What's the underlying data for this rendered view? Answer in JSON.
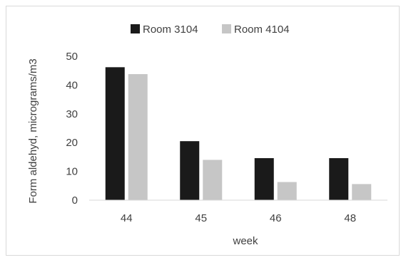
{
  "chart_data": {
    "type": "bar",
    "categories": [
      "44",
      "45",
      "46",
      "48"
    ],
    "series": [
      {
        "name": "Room 3104",
        "values": [
          46.2,
          20.5,
          14.6,
          14.6
        ],
        "color": "#1a1a1a"
      },
      {
        "name": "Room 4104",
        "values": [
          43.8,
          14.0,
          6.3,
          5.6
        ],
        "color": "#c6c6c6"
      }
    ],
    "title": "",
    "xlabel": "week",
    "ylabel": "Form aldehyd, micrograms/m3",
    "ylim": [
      0,
      50
    ],
    "yticks": [
      0,
      10,
      20,
      30,
      40,
      50
    ],
    "grid": false,
    "legend": "top-center"
  }
}
